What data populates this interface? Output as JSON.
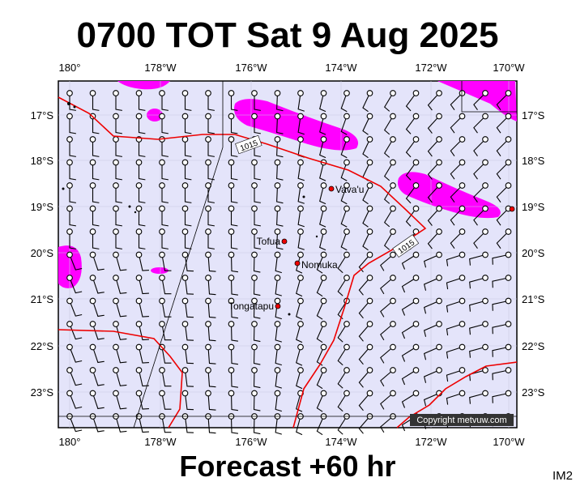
{
  "title": "0700 TOT Sat 9 Aug 2025",
  "longitude_labels": [
    "180°",
    "178°W",
    "176°W",
    "174°W",
    "172°W",
    "170°W"
  ],
  "latitude_labels": [
    "17°S",
    "18°S",
    "19°S",
    "20°S",
    "21°S",
    "22°S",
    "23°S"
  ],
  "places": [
    "Vava'u",
    "Tofua",
    "Nomuka",
    "Tongatapu"
  ],
  "isobar_labels": [
    "1015",
    "1015"
  ],
  "credit": "Copyright metvuw.com",
  "footer": "Forecast +60 hr",
  "image_id": "IM2"
}
